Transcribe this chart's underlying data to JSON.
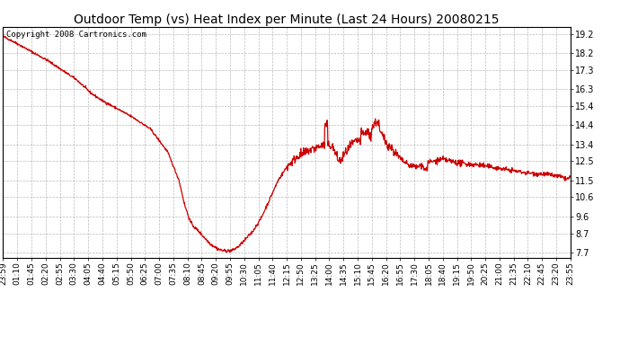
{
  "title": "Outdoor Temp (vs) Heat Index per Minute (Last 24 Hours) 20080215",
  "copyright_text": "Copyright 2008 Cartronics.com",
  "line_color": "#cc0000",
  "background_color": "#ffffff",
  "grid_color": "#aaaaaa",
  "yticks": [
    7.7,
    8.7,
    9.6,
    10.6,
    11.5,
    12.5,
    13.4,
    14.4,
    15.4,
    16.3,
    17.3,
    18.2,
    19.2
  ],
  "ylim": [
    7.4,
    19.6
  ],
  "xtick_labels": [
    "23:59",
    "01:10",
    "01:45",
    "02:20",
    "02:55",
    "03:30",
    "04:05",
    "04:40",
    "05:15",
    "05:50",
    "06:25",
    "07:00",
    "07:35",
    "08:10",
    "08:45",
    "09:20",
    "09:55",
    "10:30",
    "11:05",
    "11:40",
    "12:15",
    "12:50",
    "13:25",
    "14:00",
    "14:35",
    "15:10",
    "15:45",
    "16:20",
    "16:55",
    "17:30",
    "18:05",
    "18:40",
    "19:15",
    "19:50",
    "20:25",
    "21:00",
    "21:35",
    "22:10",
    "22:45",
    "23:20",
    "23:55"
  ],
  "num_points": 1440,
  "seed": 42,
  "title_fontsize": 10,
  "tick_fontsize": 7,
  "copyright_fontsize": 6.5
}
